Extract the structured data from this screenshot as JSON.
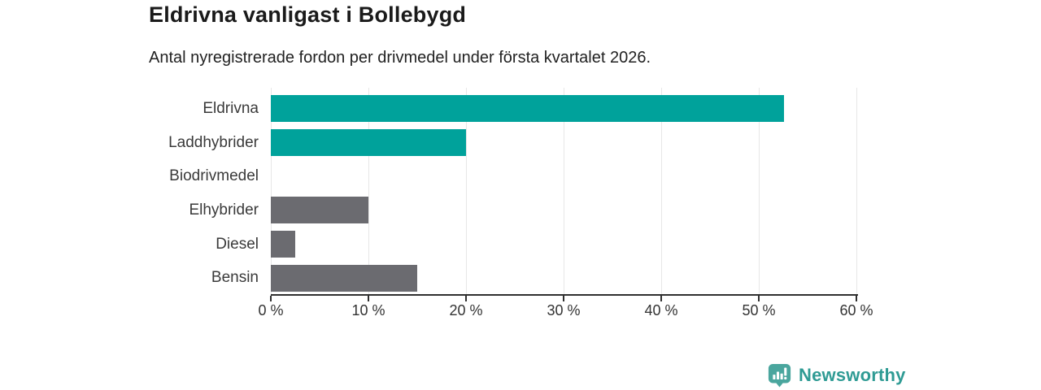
{
  "header": {
    "title": "Eldrivna vanligast i Bollebygd",
    "subtitle": "Antal nyregistrerade fordon per drivmedel under första kvartalet 2026."
  },
  "chart_data": {
    "type": "bar",
    "orientation": "horizontal",
    "title": "Eldrivna vanligast i Bollebygd",
    "subtitle": "Antal nyregistrerade fordon per drivmedel under första kvartalet 2026.",
    "categories": [
      "Eldrivna",
      "Laddhybrider",
      "Biodrivmedel",
      "Elhybrider",
      "Diesel",
      "Bensin"
    ],
    "values": [
      52.6,
      20,
      0,
      10,
      2.5,
      15
    ],
    "unit": "%",
    "xlim": [
      0,
      60
    ],
    "x_tick_values": [
      0,
      10,
      20,
      30,
      40,
      50,
      60
    ],
    "x_tick_labels": [
      "0 %",
      "10 %",
      "20 %",
      "30 %",
      "40 %",
      "50 %",
      "60 %"
    ],
    "grid": true,
    "legend": false,
    "bar_colors": [
      "#00a29b",
      "#00a29b",
      "#6b6b70",
      "#6b6b70",
      "#6b6b70",
      "#6b6b70"
    ]
  },
  "colors": {
    "accent_teal": "#00a29b",
    "neutral_gray": "#6b6b70",
    "gridline": "#e7e7e7",
    "axis": "#2f2f2f",
    "title_text": "#1a1a1a",
    "label_text": "#3a3a3a",
    "logo_icon_fill": "#4aa69e",
    "logo_text_color": "#2f9b94"
  },
  "branding": {
    "logo_text": "Newsworthy",
    "logo_icon": "bar-chart-speech-bubble-icon"
  }
}
